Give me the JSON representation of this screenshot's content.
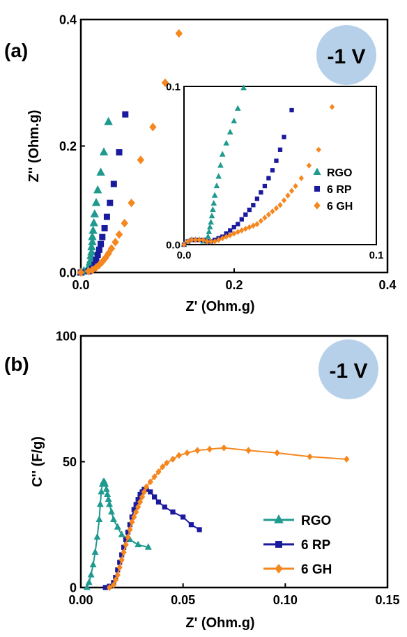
{
  "panels": {
    "a": {
      "label": "(a)",
      "badge": "-1 V"
    },
    "b": {
      "label": "(b)",
      "badge": "-1 V"
    }
  },
  "colors": {
    "RGO": "#1f9a8f",
    "6 RP": "#1a1a9e",
    "6 GH": "#f5871f",
    "badge": "#b7d0ea"
  },
  "chart_data": [
    {
      "type": "scatter",
      "panel": "a-main",
      "title": "",
      "xlabel": "Z' (Ohm.g)",
      "ylabel": "Z'' (Ohm.g)",
      "xlim": [
        0,
        0.4
      ],
      "ylim": [
        0,
        0.4
      ],
      "x_ticks": [
        "0.0",
        "0.2",
        "0.4"
      ],
      "y_ticks": [
        "0.0",
        "0.2",
        "0.4"
      ],
      "series": [
        {
          "name": "RGO",
          "marker": "triangle",
          "x": [
            0.0,
            0.004,
            0.008,
            0.01,
            0.011,
            0.012,
            0.012,
            0.013,
            0.013,
            0.014,
            0.014,
            0.015,
            0.015,
            0.016,
            0.017,
            0.018,
            0.02,
            0.022,
            0.026,
            0.03,
            0.036
          ],
          "y": [
            0.0,
            0.002,
            0.004,
            0.006,
            0.008,
            0.012,
            0.016,
            0.02,
            0.026,
            0.032,
            0.04,
            0.048,
            0.056,
            0.066,
            0.078,
            0.092,
            0.11,
            0.13,
            0.158,
            0.19,
            0.238
          ]
        },
        {
          "name": "6 RP",
          "marker": "square",
          "x": [
            0.0,
            0.01,
            0.015,
            0.018,
            0.02,
            0.022,
            0.024,
            0.026,
            0.028,
            0.031,
            0.034,
            0.038,
            0.043,
            0.05,
            0.058
          ],
          "y": [
            0.0,
            0.002,
            0.006,
            0.012,
            0.02,
            0.028,
            0.036,
            0.045,
            0.056,
            0.07,
            0.088,
            0.11,
            0.14,
            0.19,
            0.25
          ]
        },
        {
          "name": "6 GH",
          "marker": "diamond",
          "x": [
            0.0,
            0.01,
            0.015,
            0.02,
            0.024,
            0.028,
            0.032,
            0.036,
            0.04,
            0.045,
            0.05,
            0.057,
            0.066,
            0.078,
            0.094,
            0.11,
            0.128
          ],
          "y": [
            0.0,
            0.002,
            0.004,
            0.008,
            0.012,
            0.017,
            0.023,
            0.03,
            0.038,
            0.048,
            0.06,
            0.078,
            0.11,
            0.178,
            0.23,
            0.3,
            0.378
          ]
        }
      ]
    },
    {
      "type": "scatter",
      "panel": "a-inset",
      "title": "",
      "xlabel": "",
      "ylabel": "",
      "xlim": [
        0,
        0.1
      ],
      "ylim": [
        0,
        0.1
      ],
      "x_ticks": [
        "0.0",
        "0.1"
      ],
      "y_ticks": [
        "0.0",
        "0.1"
      ],
      "legend": {
        "position": "center-right",
        "entries": [
          "RGO",
          "6 RP",
          "6 GH"
        ]
      },
      "series": [
        {
          "name": "RGO",
          "marker": "triangle",
          "x": [
            0.0,
            0.002,
            0.004,
            0.006,
            0.008,
            0.01,
            0.011,
            0.012,
            0.0125,
            0.013,
            0.0135,
            0.014,
            0.0145,
            0.015,
            0.0155,
            0.016,
            0.017,
            0.018,
            0.019,
            0.02,
            0.022,
            0.024,
            0.026,
            0.028,
            0.031
          ],
          "y": [
            0.0,
            0.002,
            0.003,
            0.003,
            0.003,
            0.002,
            0.002,
            0.003,
            0.005,
            0.008,
            0.011,
            0.014,
            0.018,
            0.022,
            0.026,
            0.031,
            0.037,
            0.043,
            0.05,
            0.057,
            0.064,
            0.071,
            0.078,
            0.086,
            0.099
          ]
        },
        {
          "name": "6 RP",
          "marker": "square",
          "x": [
            0.0,
            0.002,
            0.004,
            0.006,
            0.008,
            0.01,
            0.012,
            0.014,
            0.016,
            0.018,
            0.02,
            0.022,
            0.024,
            0.026,
            0.028,
            0.03,
            0.032,
            0.034,
            0.036,
            0.038,
            0.04,
            0.042,
            0.044,
            0.046,
            0.048,
            0.05,
            0.052,
            0.056
          ],
          "y": [
            0.0,
            0.002,
            0.003,
            0.003,
            0.003,
            0.003,
            0.002,
            0.002,
            0.003,
            0.004,
            0.005,
            0.007,
            0.009,
            0.011,
            0.013,
            0.016,
            0.019,
            0.022,
            0.025,
            0.029,
            0.033,
            0.037,
            0.042,
            0.047,
            0.053,
            0.06,
            0.068,
            0.085
          ]
        },
        {
          "name": "6 GH",
          "marker": "diamond",
          "x": [
            0.0,
            0.002,
            0.004,
            0.006,
            0.008,
            0.01,
            0.012,
            0.014,
            0.016,
            0.018,
            0.02,
            0.022,
            0.024,
            0.026,
            0.028,
            0.03,
            0.032,
            0.034,
            0.036,
            0.038,
            0.04,
            0.042,
            0.044,
            0.046,
            0.048,
            0.05,
            0.052,
            0.054,
            0.056,
            0.058,
            0.061,
            0.065,
            0.07,
            0.077
          ],
          "y": [
            0.0,
            0.002,
            0.003,
            0.003,
            0.003,
            0.003,
            0.002,
            0.002,
            0.002,
            0.003,
            0.004,
            0.005,
            0.006,
            0.007,
            0.008,
            0.009,
            0.01,
            0.011,
            0.012,
            0.013,
            0.015,
            0.017,
            0.019,
            0.021,
            0.023,
            0.025,
            0.028,
            0.031,
            0.034,
            0.037,
            0.042,
            0.05,
            0.06,
            0.087
          ]
        }
      ]
    },
    {
      "type": "line",
      "panel": "b",
      "title": "",
      "xlabel": "Z' (Ohm.g)",
      "ylabel": "C'' (F/g)",
      "xlim": [
        0,
        0.15
      ],
      "ylim": [
        0,
        100
      ],
      "x_ticks": [
        "0.00",
        "0.05",
        "0.10",
        "0.15"
      ],
      "y_ticks": [
        "0",
        "50",
        "100"
      ],
      "legend": {
        "position": "center-right",
        "entries": [
          "RGO",
          "6 RP",
          "6 GH"
        ]
      },
      "series": [
        {
          "name": "RGO",
          "marker": "triangle",
          "x": [
            0.003,
            0.004,
            0.005,
            0.006,
            0.007,
            0.008,
            0.009,
            0.0095,
            0.01,
            0.0105,
            0.011,
            0.0115,
            0.012,
            0.0125,
            0.013,
            0.0135,
            0.014,
            0.015,
            0.016,
            0.018,
            0.02,
            0.024,
            0.028,
            0.033
          ],
          "y": [
            0,
            2,
            5,
            9,
            14,
            20,
            27,
            33,
            38,
            41,
            42,
            42,
            41,
            39,
            37,
            35,
            33,
            30,
            27,
            24,
            21,
            19,
            17,
            16
          ]
        },
        {
          "name": "6 RP",
          "marker": "square",
          "x": [
            0.012,
            0.014,
            0.016,
            0.017,
            0.018,
            0.019,
            0.02,
            0.021,
            0.022,
            0.023,
            0.024,
            0.025,
            0.026,
            0.027,
            0.028,
            0.029,
            0.03,
            0.031,
            0.032,
            0.034,
            0.036,
            0.038,
            0.041,
            0.045,
            0.05,
            0.054,
            0.058
          ],
          "y": [
            0,
            0.5,
            2,
            4,
            7,
            10,
            13,
            16,
            19,
            22,
            25,
            28,
            31,
            33,
            35,
            37,
            38,
            39,
            39,
            38,
            36,
            34,
            32,
            30,
            28,
            25,
            23
          ]
        },
        {
          "name": "6 GH",
          "marker": "diamond",
          "x": [
            0.014,
            0.016,
            0.017,
            0.018,
            0.019,
            0.02,
            0.021,
            0.022,
            0.023,
            0.024,
            0.025,
            0.026,
            0.027,
            0.028,
            0.029,
            0.03,
            0.031,
            0.032,
            0.034,
            0.036,
            0.038,
            0.04,
            0.042,
            0.045,
            0.048,
            0.052,
            0.057,
            0.063,
            0.07,
            0.082,
            0.096,
            0.112,
            0.13
          ],
          "y": [
            0,
            1,
            3,
            5,
            8,
            11,
            14,
            17,
            20,
            23,
            26,
            28,
            30,
            32,
            34,
            36,
            38,
            40,
            42,
            44,
            46,
            48,
            49.5,
            51,
            52.5,
            53.5,
            54.5,
            55,
            55.5,
            54.5,
            53.5,
            52,
            51
          ]
        }
      ]
    }
  ]
}
